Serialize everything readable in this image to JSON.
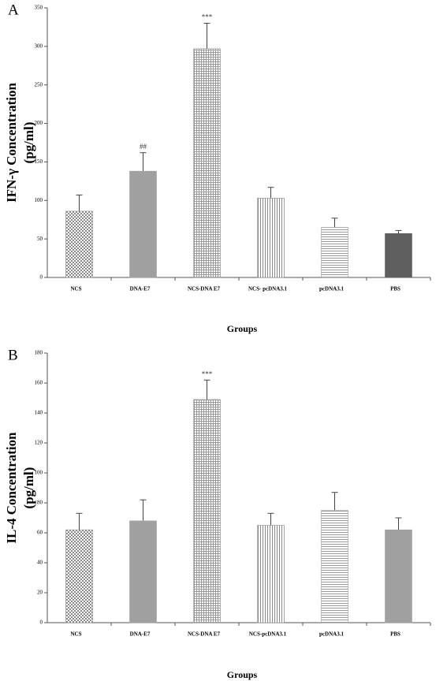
{
  "chart_data": [
    {
      "type": "bar",
      "panel": "A",
      "ylabel": [
        "IFN-γ Concentration",
        "(pg/ml)"
      ],
      "xlabel": "Groups",
      "categories": [
        "NCS",
        "DNA-E7",
        "NCS-DNA E7",
        "NCS- pcDNA3.1",
        "pcDNA3.1",
        "PBS"
      ],
      "values": [
        86,
        138,
        297,
        103,
        65,
        57
      ],
      "errors": [
        21,
        24,
        33,
        14,
        12,
        4
      ],
      "significance": [
        null,
        "##",
        "***",
        null,
        null,
        null
      ],
      "colors": [
        "#8a8a8a",
        "#a0a0a0",
        "#9a9a9a",
        "#8a8a8a",
        "#9a9a9a",
        "#5f5f5f"
      ],
      "patterns": [
        "checker",
        "solid",
        "grid",
        "vertical",
        "horizontal",
        "solid"
      ],
      "ylim": [
        0,
        350
      ],
      "yticks": [
        0,
        50,
        100,
        150,
        200,
        250,
        300,
        350
      ]
    },
    {
      "type": "bar",
      "panel": "B",
      "ylabel": [
        "IL-4 Concentration",
        "(pg/ml)"
      ],
      "xlabel": "Groups",
      "categories": [
        "NCS",
        "DNA-E7",
        "NCS-DNA E7",
        "NCS-pcDNA3.1",
        "pcDNA3.1",
        "PBS"
      ],
      "values": [
        62,
        68,
        149,
        65,
        75,
        62
      ],
      "errors": [
        11,
        14,
        13,
        8,
        12,
        8
      ],
      "significance": [
        null,
        null,
        "***",
        null,
        null,
        null
      ],
      "colors": [
        "#8a8a8a",
        "#a0a0a0",
        "#9a9a9a",
        "#8a8a8a",
        "#9a9a9a",
        "#a0a0a0"
      ],
      "patterns": [
        "checker",
        "solid",
        "grid",
        "vertical",
        "horizontal",
        "solid"
      ],
      "ylim": [
        0,
        180
      ],
      "yticks": [
        0,
        20,
        40,
        60,
        80,
        100,
        120,
        140,
        160,
        180
      ]
    }
  ]
}
